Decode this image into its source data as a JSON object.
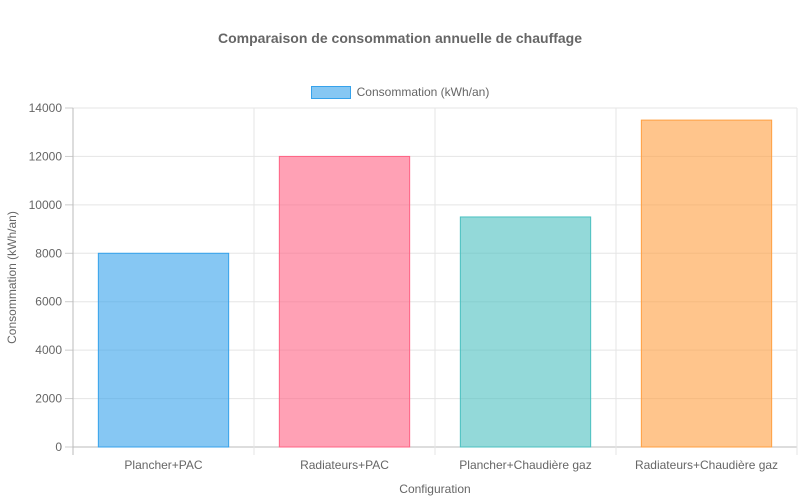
{
  "chart_data": {
    "type": "bar",
    "title": "Comparaison de consommation annuelle de chauffage",
    "xlabel": "Configuration",
    "ylabel": "Consommation (kWh/an)",
    "legend": [
      "Consommation (kWh/an)"
    ],
    "legend_position": "top",
    "grid": true,
    "ylim": [
      0,
      14000
    ],
    "yticks": [
      0,
      2000,
      4000,
      6000,
      8000,
      10000,
      12000,
      14000
    ],
    "categories": [
      "Plancher+PAC",
      "Radiateurs+PAC",
      "Plancher+Chaudière gaz",
      "Radiateurs+Chaudière gaz"
    ],
    "series": [
      {
        "name": "Consommation (kWh/an)",
        "values": [
          8000,
          12000,
          9500,
          13500
        ]
      }
    ],
    "colors": [
      {
        "fill": "rgba(54,162,235,0.6)",
        "stroke": "#36a2eb"
      },
      {
        "fill": "rgba(255,99,132,0.6)",
        "stroke": "#ff6384"
      },
      {
        "fill": "rgba(75,192,192,0.6)",
        "stroke": "#4bc0c0"
      },
      {
        "fill": "rgba(255,159,64,0.6)",
        "stroke": "#ff9f40"
      }
    ]
  }
}
